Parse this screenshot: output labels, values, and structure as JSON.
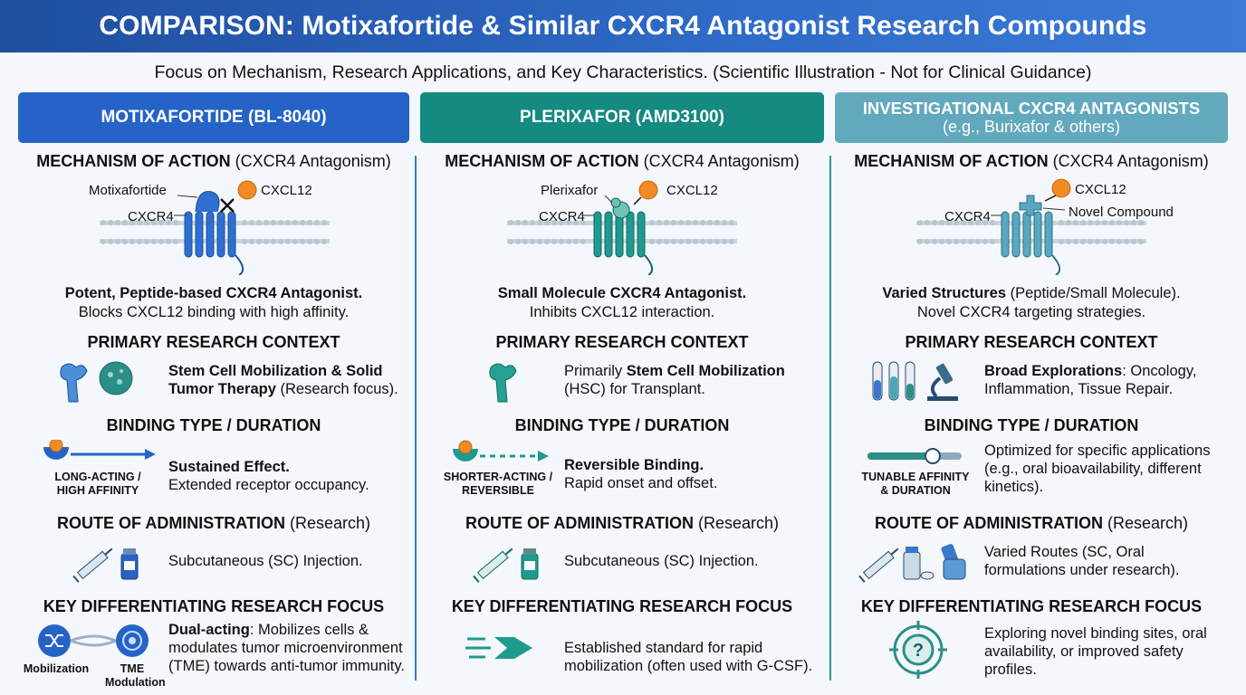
{
  "header": {
    "title": "COMPARISON: Motixafortide & Similar CXCR4 Antagonist Research Compounds",
    "subtitle": "Focus on Mechanism, Research Applications, and Key Characteristics. (Scientific Illustration - Not for Clinical Guidance)"
  },
  "colors": {
    "title_bar": "#2a5fb8",
    "col1": "#2563c7",
    "col2": "#148a80",
    "col3": "#63a9bd"
  },
  "sections": {
    "mechanism": "MECHANISM OF ACTION",
    "mechanism_note": "(CXCR4 Antagonism)",
    "context": "PRIMARY RESEARCH CONTEXT",
    "binding": "BINDING TYPE / DURATION",
    "route": "ROUTE OF ADMINISTRATION",
    "route_note": "(Research)",
    "focus": "KEY DIFFERENTIATING RESEARCH FOCUS"
  },
  "columns": [
    {
      "name": "MOTIXAFORTIDE (BL-8040)",
      "labels": {
        "drug": "Motixafortide",
        "ligand": "CXCL12",
        "receptor": "CXCR4"
      },
      "summary_bold": "Potent, Peptide-based CXCR4 Antagonist.",
      "summary_rest": "Blocks CXCL12 binding with high affinity.",
      "context_bold": "Stem Cell Mobilization & Solid Tumor Therapy",
      "context_rest": "(Research focus).",
      "binding_tag": "LONG-ACTING / HIGH AFFINITY",
      "binding_bold": "Sustained Effect.",
      "binding_rest": "Extended receptor occupancy.",
      "route_text": "Subcutaneous (SC) Injection.",
      "focus_bold": "Dual-acting",
      "focus_rest": ": Mobilizes cells & modulates tumor microenvironment (TME) towards anti-tumor immunity.",
      "focus_icon_a": "Mobilization",
      "focus_icon_b": "TME Modulation",
      "icons": [
        "bone-icon",
        "tumor-cell-icon",
        "syringe-icon",
        "vial-icon",
        "shuffle-icon",
        "cell-network-icon"
      ]
    },
    {
      "name": "PLERIXAFOR (AMD3100)",
      "labels": {
        "drug": "Plerixafor",
        "ligand": "CXCL12",
        "receptor": "CXCR4"
      },
      "summary_bold": "Small Molecule CXCR4 Antagonist.",
      "summary_rest": "Inhibits CXCL12 interaction.",
      "context_pre": "Primarily ",
      "context_bold": "Stem Cell Mobilization",
      "context_rest": "(HSC) for Transplant.",
      "binding_tag": "SHORTER-ACTING / REVERSIBLE",
      "binding_bold": "Reversible Binding.",
      "binding_rest": "Rapid onset and offset.",
      "route_text": "Subcutaneous (SC) Injection.",
      "focus_text": "Established standard for rapid mobilization (often used with G-CSF).",
      "icons": [
        "bone-icon",
        "syringe-icon",
        "vial-icon",
        "fast-arrow-icon"
      ]
    },
    {
      "name": "INVESTIGATIONAL CXCR4 ANTAGONISTS",
      "name_sub": "(e.g., Burixafor & others)",
      "labels": {
        "ligand": "CXCL12",
        "receptor": "CXCR4",
        "drug": "Novel Compound"
      },
      "summary_bold": "Varied Structures",
      "summary_rest": "(Peptide/Small Molecule).",
      "summary_line2": "Novel CXCR4 targeting strategies.",
      "context_bold": "Broad Explorations",
      "context_rest": ": Oncology, Inflammation, Tissue Repair.",
      "binding_tag": "TUNABLE AFFINITY & DURATION",
      "binding_text": "Optimized for specific applications (e.g., oral bioavailability, different kinetics).",
      "route_text": "Varied Routes (SC, Oral formulations under research).",
      "focus_text": "Exploring novel binding sites, oral availability, or improved safety profiles.",
      "icons": [
        "test-tubes-icon",
        "microscope-icon",
        "syringe-icon",
        "pill-bottle-icon",
        "inhaler-icon",
        "target-question-icon"
      ]
    }
  ]
}
